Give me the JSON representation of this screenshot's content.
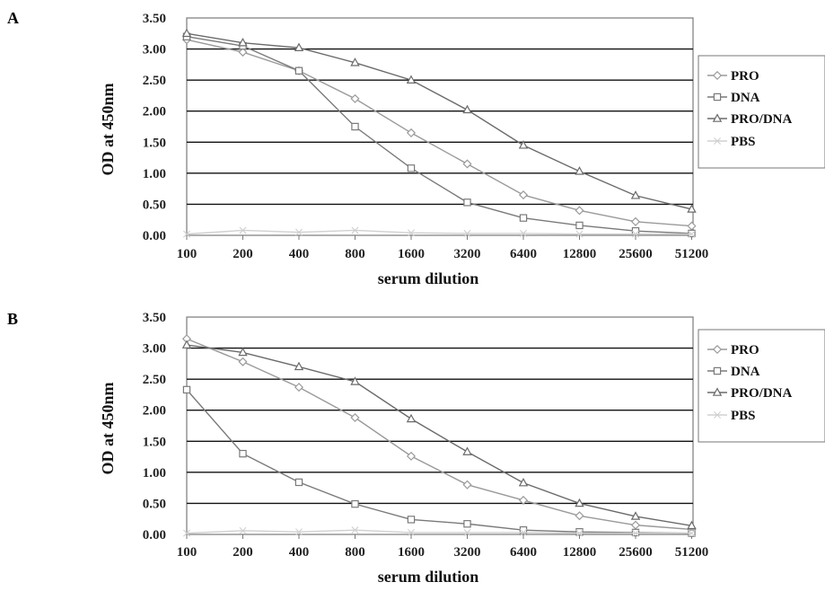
{
  "chart_data": [
    {
      "panel_label": "A",
      "type": "line",
      "xlabel": "serum dilution",
      "ylabel": "OD at 450nm",
      "x": [
        "100",
        "200",
        "400",
        "800",
        "1600",
        "3200",
        "6400",
        "12800",
        "25600",
        "51200"
      ],
      "yticks": [
        "0.00",
        "0.50",
        "1.00",
        "1.50",
        "2.00",
        "2.50",
        "3.00",
        "3.50"
      ],
      "ylim": [
        0,
        3.5
      ],
      "grid": true,
      "legend_position": "right",
      "series": [
        {
          "name": "PRO",
          "marker": "diamond",
          "color": "#9a9a9a",
          "values": [
            3.15,
            2.95,
            2.65,
            2.2,
            1.65,
            1.15,
            0.65,
            0.4,
            0.22,
            0.15
          ]
        },
        {
          "name": "DNA",
          "marker": "square",
          "color": "#7a7a7a",
          "values": [
            3.2,
            3.05,
            2.65,
            1.75,
            1.08,
            0.53,
            0.28,
            0.16,
            0.07,
            0.03
          ]
        },
        {
          "name": "PRO/DNA",
          "marker": "triangle",
          "color": "#6a6a6a",
          "values": [
            3.25,
            3.1,
            3.02,
            2.78,
            2.5,
            2.02,
            1.45,
            1.03,
            0.64,
            0.42
          ]
        },
        {
          "name": "PBS",
          "marker": "x",
          "color": "#d0d0d0",
          "values": [
            0.02,
            0.08,
            0.05,
            0.08,
            0.04,
            0.03,
            0.03,
            0.02,
            0.02,
            0.02
          ]
        }
      ]
    },
    {
      "panel_label": "B",
      "type": "line",
      "xlabel": "serum dilution",
      "ylabel": "OD at 450nm",
      "x": [
        "100",
        "200",
        "400",
        "800",
        "1600",
        "3200",
        "6400",
        "12800",
        "25600",
        "51200"
      ],
      "yticks": [
        "0.00",
        "0.50",
        "1.00",
        "1.50",
        "2.00",
        "2.50",
        "3.00",
        "3.50"
      ],
      "ylim": [
        0,
        3.5
      ],
      "grid": true,
      "legend_position": "right",
      "series": [
        {
          "name": "PRO",
          "marker": "diamond",
          "color": "#9a9a9a",
          "values": [
            3.15,
            2.78,
            2.37,
            1.88,
            1.26,
            0.8,
            0.55,
            0.3,
            0.15,
            0.08
          ]
        },
        {
          "name": "DNA",
          "marker": "square",
          "color": "#7a7a7a",
          "values": [
            2.33,
            1.3,
            0.84,
            0.49,
            0.24,
            0.17,
            0.07,
            0.04,
            0.03,
            0.02
          ]
        },
        {
          "name": "PRO/DNA",
          "marker": "triangle",
          "color": "#6a6a6a",
          "values": [
            3.05,
            2.93,
            2.7,
            2.46,
            1.86,
            1.33,
            0.83,
            0.5,
            0.29,
            0.14
          ]
        },
        {
          "name": "PBS",
          "marker": "x",
          "color": "#d0d0d0",
          "values": [
            0.02,
            0.06,
            0.04,
            0.07,
            0.03,
            0.03,
            0.03,
            0.02,
            0.02,
            0.02
          ]
        }
      ]
    }
  ]
}
